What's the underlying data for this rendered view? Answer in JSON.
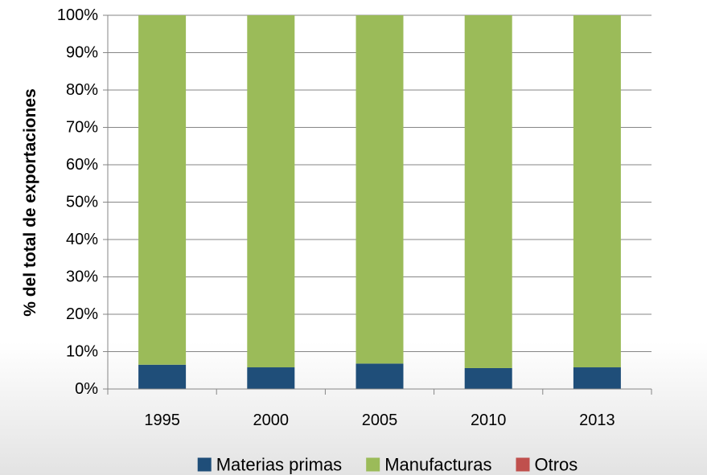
{
  "chart_data": {
    "type": "bar",
    "stacked": true,
    "title": "",
    "xlabel": "",
    "ylabel": "% del total de exportaciones",
    "categories": [
      "1995",
      "2000",
      "2005",
      "2010",
      "2013"
    ],
    "ylim": [
      0,
      100
    ],
    "yticks": [
      "0%",
      "10%",
      "20%",
      "30%",
      "40%",
      "50%",
      "60%",
      "70%",
      "80%",
      "90%",
      "100%"
    ],
    "grid": true,
    "legend_position": "bottom",
    "series": [
      {
        "name": "Materias primas",
        "color": "#1f4e79",
        "values": [
          6.5,
          5.8,
          6.8,
          5.6,
          5.8
        ]
      },
      {
        "name": "Manufacturas",
        "color": "#9bbb59",
        "values": [
          93.5,
          94.2,
          93.2,
          94.4,
          94.2
        ]
      },
      {
        "name": "Otros",
        "color": "#c0504d",
        "values": [
          0,
          0,
          0,
          0,
          0
        ]
      }
    ]
  }
}
